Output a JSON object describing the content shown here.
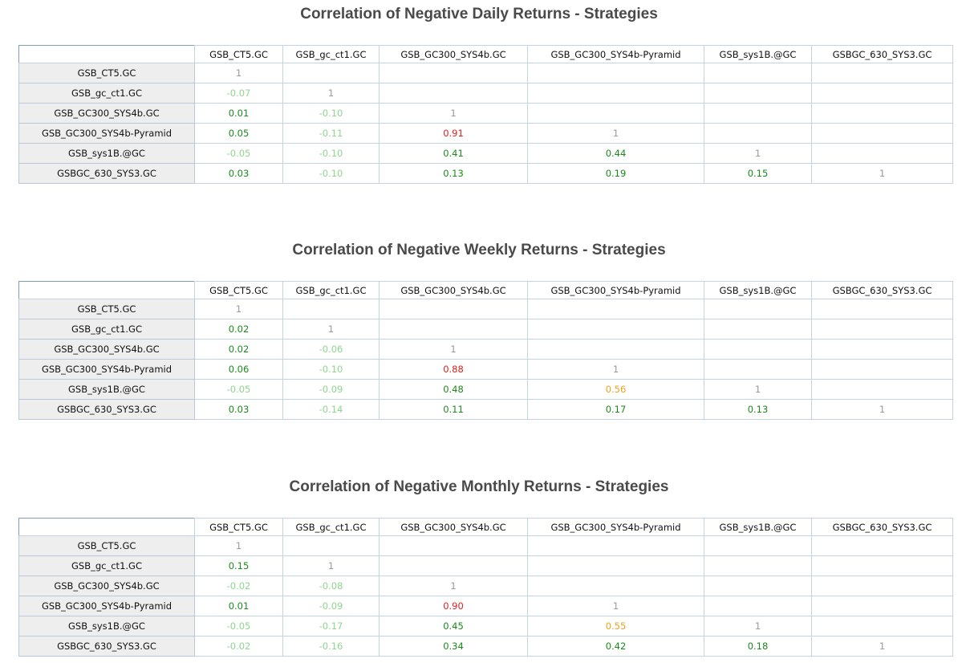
{
  "colors": {
    "diagonal": "#999999",
    "negative": "#8fd68f",
    "positive": "#1b8a1b",
    "moderate": "#f0a020",
    "high": "#e02020"
  },
  "chart_data": [
    {
      "type": "heatmap",
      "title": "Correlation of Negative Daily Returns - Strategies",
      "columns": [
        "GSB_CT5.GC",
        "GSB_gc_ct1.GC",
        "GSB_GC300_SYS4b.GC",
        "GSB_GC300_SYS4b-Pyramid",
        "GSB_sys1B.@GC",
        "GSBGC_630_SYS3.GC"
      ],
      "rows": [
        {
          "label": "GSB_CT5.GC",
          "cells": [
            {
              "t": "1",
              "c": "diag"
            }
          ]
        },
        {
          "label": "GSB_gc_ct1.GC",
          "cells": [
            {
              "t": "-0.07",
              "c": "neg"
            },
            {
              "t": "1",
              "c": "diag"
            }
          ]
        },
        {
          "label": "GSB_GC300_SYS4b.GC",
          "cells": [
            {
              "t": "0.01",
              "c": "pos"
            },
            {
              "t": "-0.10",
              "c": "neg"
            },
            {
              "t": "1",
              "c": "diag"
            }
          ]
        },
        {
          "label": "GSB_GC300_SYS4b-Pyramid",
          "cells": [
            {
              "t": "0.05",
              "c": "pos"
            },
            {
              "t": "-0.11",
              "c": "neg"
            },
            {
              "t": "0.91",
              "c": "high"
            },
            {
              "t": "1",
              "c": "diag"
            }
          ]
        },
        {
          "label": "GSB_sys1B.@GC",
          "cells": [
            {
              "t": "-0.05",
              "c": "neg"
            },
            {
              "t": "-0.10",
              "c": "neg"
            },
            {
              "t": "0.41",
              "c": "pos"
            },
            {
              "t": "0.44",
              "c": "pos"
            },
            {
              "t": "1",
              "c": "diag"
            }
          ]
        },
        {
          "label": "GSBGC_630_SYS3.GC",
          "cells": [
            {
              "t": "0.03",
              "c": "pos"
            },
            {
              "t": "-0.10",
              "c": "neg"
            },
            {
              "t": "0.13",
              "c": "pos"
            },
            {
              "t": "0.19",
              "c": "pos"
            },
            {
              "t": "0.15",
              "c": "pos"
            },
            {
              "t": "1",
              "c": "diag"
            }
          ]
        }
      ]
    },
    {
      "type": "heatmap",
      "title": "Correlation of Negative Weekly Returns - Strategies",
      "columns": [
        "GSB_CT5.GC",
        "GSB_gc_ct1.GC",
        "GSB_GC300_SYS4b.GC",
        "GSB_GC300_SYS4b-Pyramid",
        "GSB_sys1B.@GC",
        "GSBGC_630_SYS3.GC"
      ],
      "rows": [
        {
          "label": "GSB_CT5.GC",
          "cells": [
            {
              "t": "1",
              "c": "diag"
            }
          ]
        },
        {
          "label": "GSB_gc_ct1.GC",
          "cells": [
            {
              "t": "0.02",
              "c": "pos"
            },
            {
              "t": "1",
              "c": "diag"
            }
          ]
        },
        {
          "label": "GSB_GC300_SYS4b.GC",
          "cells": [
            {
              "t": "0.02",
              "c": "pos"
            },
            {
              "t": "-0.06",
              "c": "neg"
            },
            {
              "t": "1",
              "c": "diag"
            }
          ]
        },
        {
          "label": "GSB_GC300_SYS4b-Pyramid",
          "cells": [
            {
              "t": "0.06",
              "c": "pos"
            },
            {
              "t": "-0.10",
              "c": "neg"
            },
            {
              "t": "0.88",
              "c": "high"
            },
            {
              "t": "1",
              "c": "diag"
            }
          ]
        },
        {
          "label": "GSB_sys1B.@GC",
          "cells": [
            {
              "t": "-0.05",
              "c": "neg"
            },
            {
              "t": "-0.09",
              "c": "neg"
            },
            {
              "t": "0.48",
              "c": "pos"
            },
            {
              "t": "0.56",
              "c": "mod"
            },
            {
              "t": "1",
              "c": "diag"
            }
          ]
        },
        {
          "label": "GSBGC_630_SYS3.GC",
          "cells": [
            {
              "t": "0.03",
              "c": "pos"
            },
            {
              "t": "-0.14",
              "c": "neg"
            },
            {
              "t": "0.11",
              "c": "pos"
            },
            {
              "t": "0.17",
              "c": "pos"
            },
            {
              "t": "0.13",
              "c": "pos"
            },
            {
              "t": "1",
              "c": "diag"
            }
          ]
        }
      ]
    },
    {
      "type": "heatmap",
      "title": "Correlation of Negative Monthly Returns - Strategies",
      "columns": [
        "GSB_CT5.GC",
        "GSB_gc_ct1.GC",
        "GSB_GC300_SYS4b.GC",
        "GSB_GC300_SYS4b-Pyramid",
        "GSB_sys1B.@GC",
        "GSBGC_630_SYS3.GC"
      ],
      "rows": [
        {
          "label": "GSB_CT5.GC",
          "cells": [
            {
              "t": "1",
              "c": "diag"
            }
          ]
        },
        {
          "label": "GSB_gc_ct1.GC",
          "cells": [
            {
              "t": "0.15",
              "c": "pos"
            },
            {
              "t": "1",
              "c": "diag"
            }
          ]
        },
        {
          "label": "GSB_GC300_SYS4b.GC",
          "cells": [
            {
              "t": "-0.02",
              "c": "neg"
            },
            {
              "t": "-0.08",
              "c": "neg"
            },
            {
              "t": "1",
              "c": "diag"
            }
          ]
        },
        {
          "label": "GSB_GC300_SYS4b-Pyramid",
          "cells": [
            {
              "t": "0.01",
              "c": "pos"
            },
            {
              "t": "-0.09",
              "c": "neg"
            },
            {
              "t": "0.90",
              "c": "high"
            },
            {
              "t": "1",
              "c": "diag"
            }
          ]
        },
        {
          "label": "GSB_sys1B.@GC",
          "cells": [
            {
              "t": "-0.05",
              "c": "neg"
            },
            {
              "t": "-0.17",
              "c": "neg"
            },
            {
              "t": "0.45",
              "c": "pos"
            },
            {
              "t": "0.55",
              "c": "mod"
            },
            {
              "t": "1",
              "c": "diag"
            }
          ]
        },
        {
          "label": "GSBGC_630_SYS3.GC",
          "cells": [
            {
              "t": "-0.02",
              "c": "neg"
            },
            {
              "t": "-0.16",
              "c": "neg"
            },
            {
              "t": "0.34",
              "c": "pos"
            },
            {
              "t": "0.42",
              "c": "pos"
            },
            {
              "t": "0.18",
              "c": "pos"
            },
            {
              "t": "1",
              "c": "diag"
            }
          ]
        }
      ]
    }
  ]
}
